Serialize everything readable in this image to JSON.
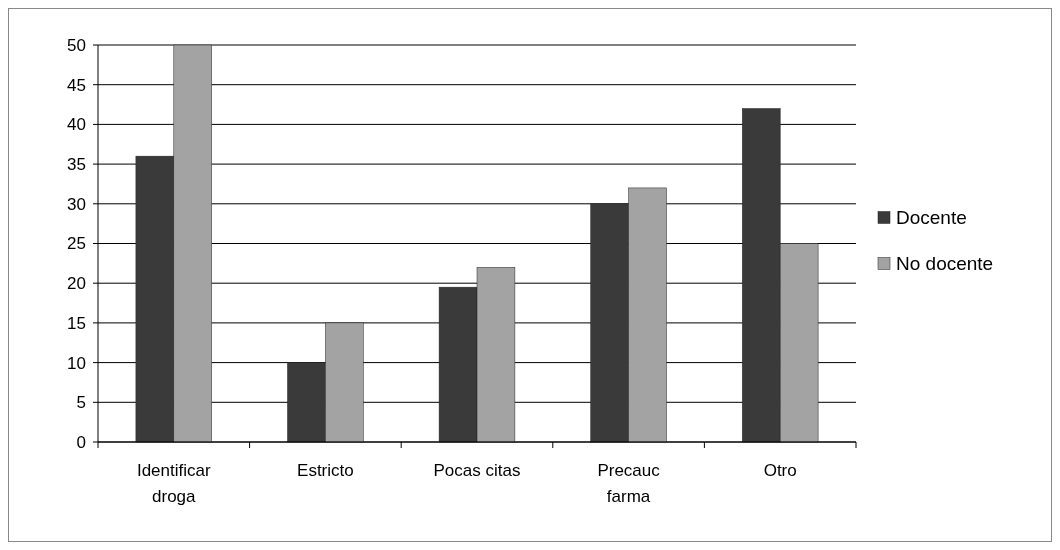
{
  "chart_data": {
    "type": "bar",
    "categories": [
      "Identificar droga",
      "Estricto",
      "Pocas citas",
      "Precauc farma",
      "Otro"
    ],
    "series": [
      {
        "name": "Docente",
        "color": "#3a3a3a",
        "values": [
          36,
          10,
          19.5,
          30,
          42
        ]
      },
      {
        "name": "No docente",
        "color": "#a3a3a3",
        "values": [
          50,
          15,
          22,
          32,
          25
        ]
      }
    ],
    "ylim": [
      0,
      50
    ],
    "yticks": [
      0,
      5,
      10,
      15,
      20,
      25,
      30,
      35,
      40,
      45,
      50
    ],
    "grid": "y",
    "legend": "right"
  }
}
